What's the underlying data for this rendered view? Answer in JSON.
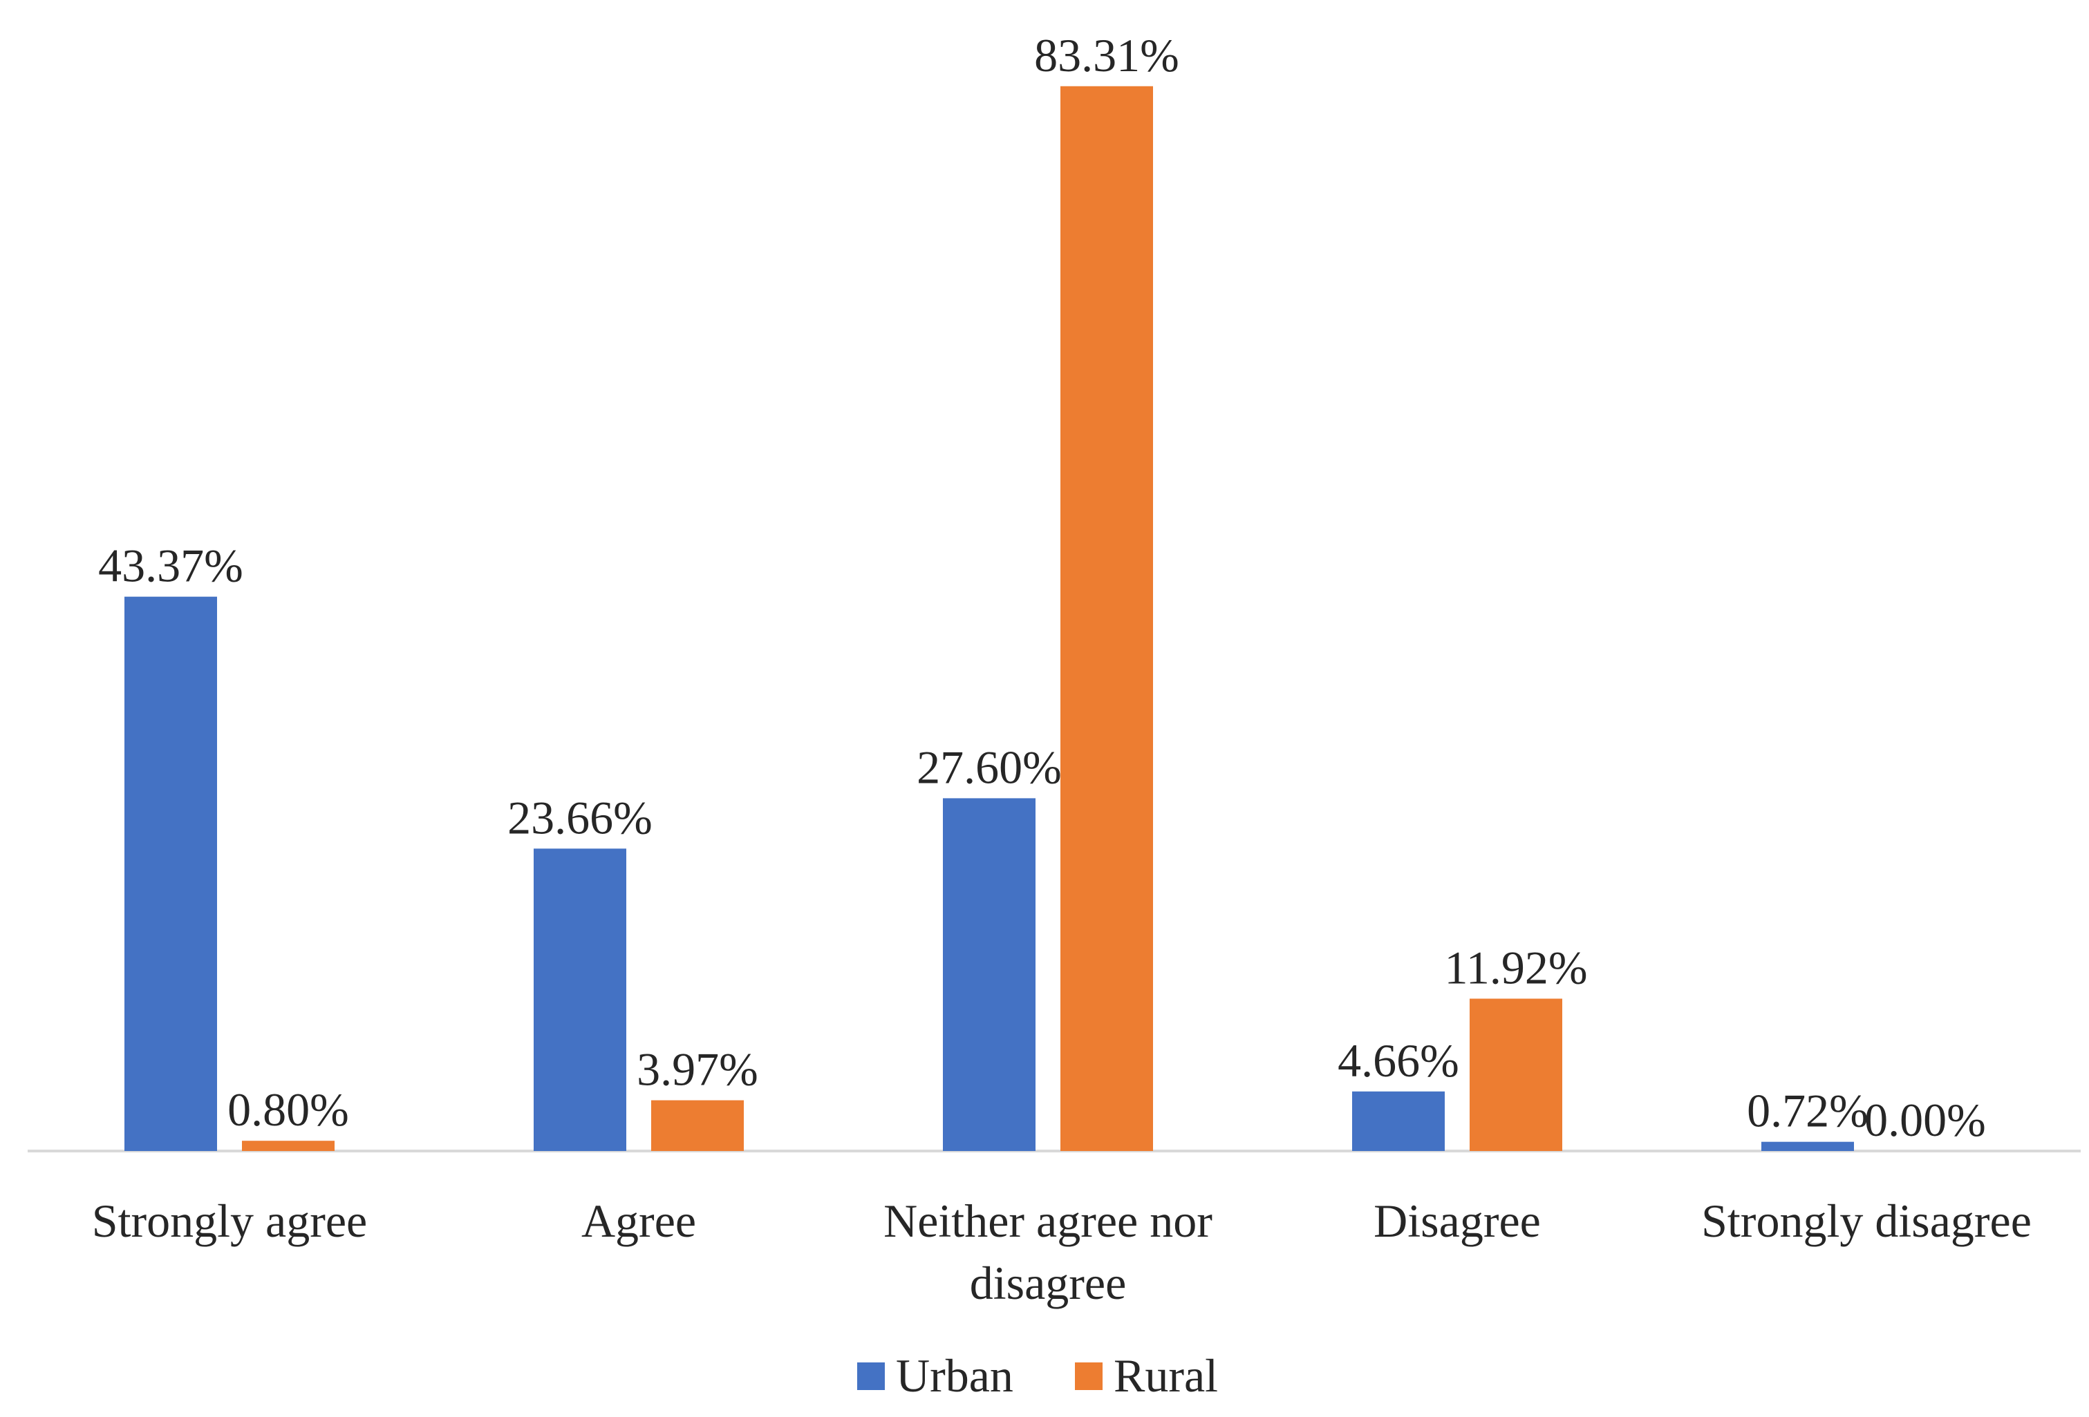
{
  "chart_data": {
    "type": "bar",
    "title": "",
    "xlabel": "",
    "ylabel": "",
    "ylim": [
      0,
      85
    ],
    "grid": false,
    "legend_position": "bottom-center",
    "categories": [
      [
        "Strongly agree"
      ],
      [
        "Agree"
      ],
      [
        "Neither agree nor",
        "disagree"
      ],
      [
        "Disagree"
      ],
      [
        "Strongly disagree"
      ]
    ],
    "series": [
      {
        "name": "Urban",
        "color": "#4472C4",
        "values": [
          43.37,
          23.66,
          27.6,
          4.66,
          0.72
        ],
        "labels": [
          "43.37%",
          "23.66%",
          "27.60%",
          "4.66%",
          "0.72%"
        ]
      },
      {
        "name": "Rural",
        "color": "#ED7D31",
        "values": [
          0.8,
          3.97,
          83.31,
          11.92,
          0.0
        ],
        "labels": [
          "0.80%",
          "3.97%",
          "83.31%",
          "11.92%",
          "0.00%"
        ]
      }
    ]
  }
}
